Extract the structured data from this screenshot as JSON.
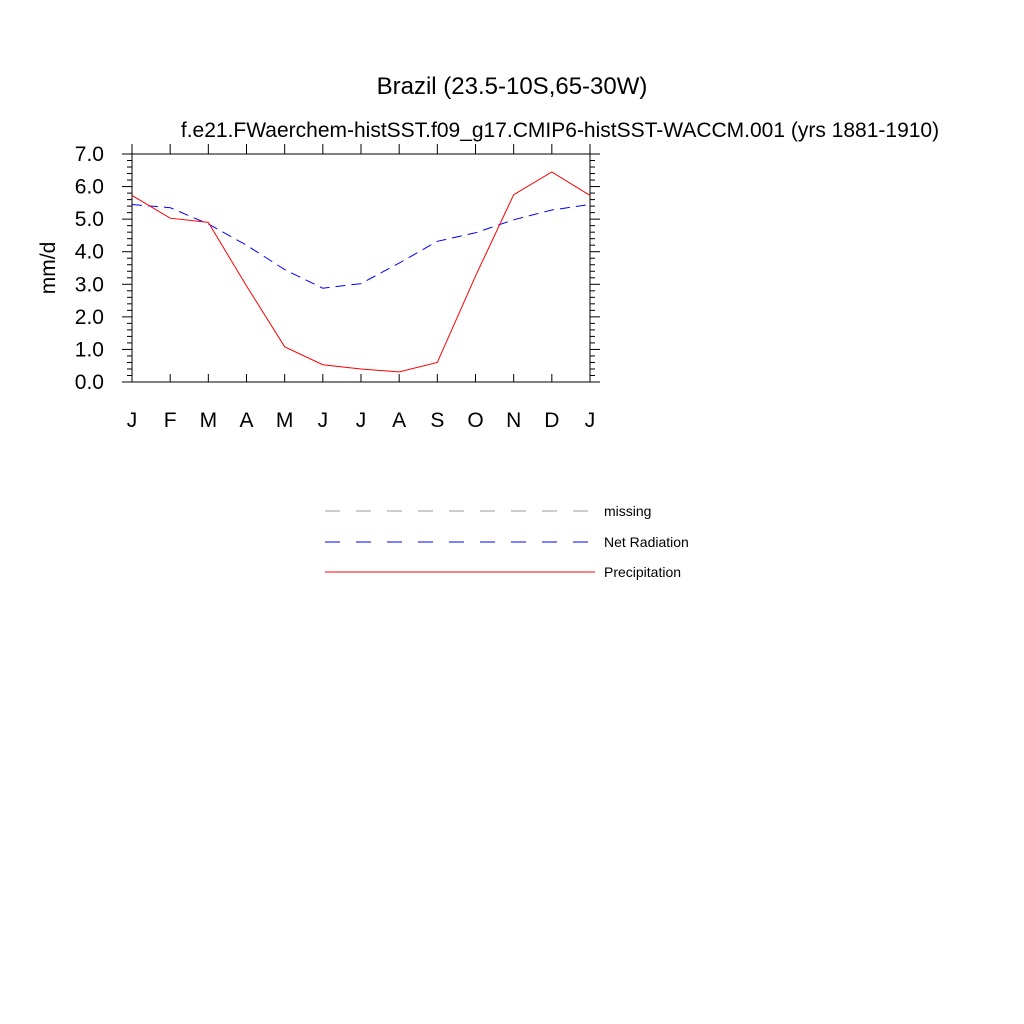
{
  "chart_data": {
    "type": "line",
    "title": "Brazil (23.5-10S,65-30W)",
    "subtitle": "f.e21.FWaerchem-histSST.f09_g17.CMIP6-histSST-WACCM.001 (yrs 1881-1910)",
    "ylabel": "mm/d",
    "xlabel": "",
    "ylim": [
      0,
      7
    ],
    "yticks": [
      "0.0",
      "1.0",
      "2.0",
      "3.0",
      "4.0",
      "5.0",
      "6.0",
      "7.0"
    ],
    "categories": [
      "J",
      "F",
      "M",
      "A",
      "M",
      "J",
      "J",
      "A",
      "S",
      "O",
      "N",
      "D",
      "J"
    ],
    "series": [
      {
        "name": "Net Radiation",
        "color": "#0000ff",
        "dash": "dashed",
        "values": [
          5.45,
          5.35,
          4.85,
          4.2,
          3.45,
          2.88,
          3.02,
          3.65,
          4.32,
          4.58,
          4.98,
          5.28,
          5.45
        ]
      },
      {
        "name": "Precipitation",
        "color": "#ff0000",
        "dash": "solid",
        "values": [
          5.73,
          5.03,
          4.9,
          2.95,
          1.08,
          0.53,
          0.4,
          0.31,
          0.6,
          3.25,
          5.75,
          6.45,
          5.73
        ]
      }
    ],
    "legend": {
      "placement": "bottom-center",
      "entries": [
        {
          "label": "missing",
          "color": "#999999",
          "dash": "dashed"
        },
        {
          "label": "Net Radiation",
          "color": "#0000ff",
          "dash": "dashed"
        },
        {
          "label": "Precipitation",
          "color": "#ff0000",
          "dash": "solid"
        }
      ]
    },
    "grid": false
  }
}
